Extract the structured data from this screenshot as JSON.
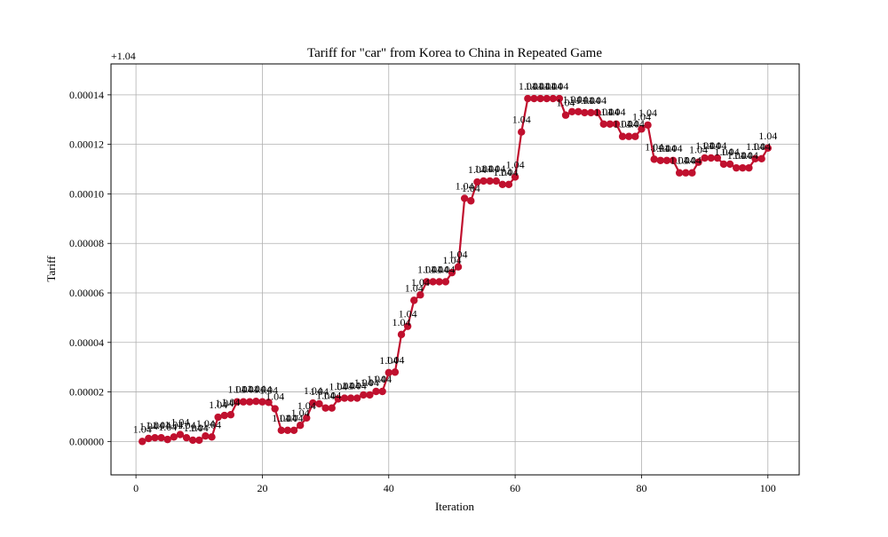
{
  "chart_data": {
    "type": "line",
    "title": "Tariff for \"car\" from Korea to China in Repeated Game",
    "xlabel": "Iteration",
    "ylabel": "Tariff",
    "y_offset_label": "+1.04",
    "y_offset": 1.04,
    "xlim": [
      -3.95,
      104.95
    ],
    "ylim": [
      -1.35e-05,
      0.0001525
    ],
    "x_ticks": [
      0,
      20,
      40,
      60,
      80,
      100
    ],
    "x_tick_labels": [
      "0",
      "20",
      "40",
      "60",
      "80",
      "100"
    ],
    "y_ticks": [
      0,
      2e-05,
      4e-05,
      6e-05,
      8e-05,
      0.0001,
      0.00012,
      0.00014
    ],
    "y_tick_labels": [
      "0.00000",
      "0.00002",
      "0.00004",
      "0.00006",
      "0.00008",
      "0.00010",
      "0.00012",
      "0.00014"
    ],
    "grid": true,
    "legend": "none",
    "series": [
      {
        "color": "#c0102e",
        "marker": "circle",
        "point_label": "1.04",
        "x": [
          1,
          2,
          3,
          4,
          5,
          6,
          7,
          8,
          9,
          10,
          11,
          12,
          13,
          14,
          15,
          16,
          17,
          18,
          19,
          20,
          21,
          22,
          23,
          24,
          25,
          26,
          27,
          28,
          29,
          30,
          31,
          32,
          33,
          34,
          35,
          36,
          37,
          38,
          39,
          40,
          41,
          42,
          43,
          44,
          45,
          46,
          47,
          48,
          49,
          50,
          51,
          52,
          53,
          54,
          55,
          56,
          57,
          58,
          59,
          60,
          61,
          62,
          63,
          64,
          65,
          66,
          67,
          68,
          69,
          70,
          71,
          72,
          73,
          74,
          75,
          76,
          77,
          78,
          79,
          80,
          81,
          82,
          83,
          84,
          85,
          86,
          87,
          88,
          89,
          90,
          91,
          92,
          93,
          94,
          95,
          96,
          97,
          98,
          99,
          100
        ],
        "y": [
          0.0,
          1.2e-06,
          1.5e-06,
          1.5e-06,
          8e-07,
          1.8e-06,
          2.8e-06,
          1.5e-06,
          5e-07,
          5e-07,
          2.2e-06,
          1.8e-06,
          9.8e-06,
          1.05e-05,
          1.08e-05,
          1.6e-05,
          1.6e-05,
          1.6e-05,
          1.62e-05,
          1.6e-05,
          1.58e-05,
          1.32e-05,
          4.5e-06,
          4.5e-06,
          4.5e-06,
          6.5e-06,
          9.5e-06,
          1.55e-05,
          1.52e-05,
          1.35e-05,
          1.35e-05,
          1.72e-05,
          1.75e-05,
          1.75e-05,
          1.75e-05,
          1.88e-05,
          1.88e-05,
          2.02e-05,
          2.02e-05,
          2.78e-05,
          2.8e-05,
          4.32e-05,
          4.65e-05,
          5.7e-05,
          5.92e-05,
          6.45e-05,
          6.45e-05,
          6.45e-05,
          6.45e-05,
          6.82e-05,
          7.05e-05,
          9.82e-05,
          9.72e-05,
          0.0001048,
          0.0001052,
          0.0001052,
          0.0001052,
          0.0001038,
          0.0001038,
          0.0001068,
          0.000125,
          0.0001385,
          0.0001385,
          0.0001385,
          0.0001385,
          0.0001385,
          0.0001385,
          0.0001318,
          0.0001332,
          0.0001332,
          0.0001328,
          0.0001328,
          0.0001328,
          0.0001282,
          0.0001282,
          0.0001282,
          0.0001232,
          0.0001232,
          0.0001232,
          0.0001262,
          0.0001278,
          0.000114,
          0.0001135,
          0.0001135,
          0.0001135,
          0.0001085,
          0.0001085,
          0.0001085,
          0.0001128,
          0.0001145,
          0.0001145,
          0.0001145,
          0.000112,
          0.000112,
          0.0001105,
          0.0001105,
          0.0001105,
          0.0001142,
          0.0001142,
          0.0001185
        ]
      }
    ]
  }
}
